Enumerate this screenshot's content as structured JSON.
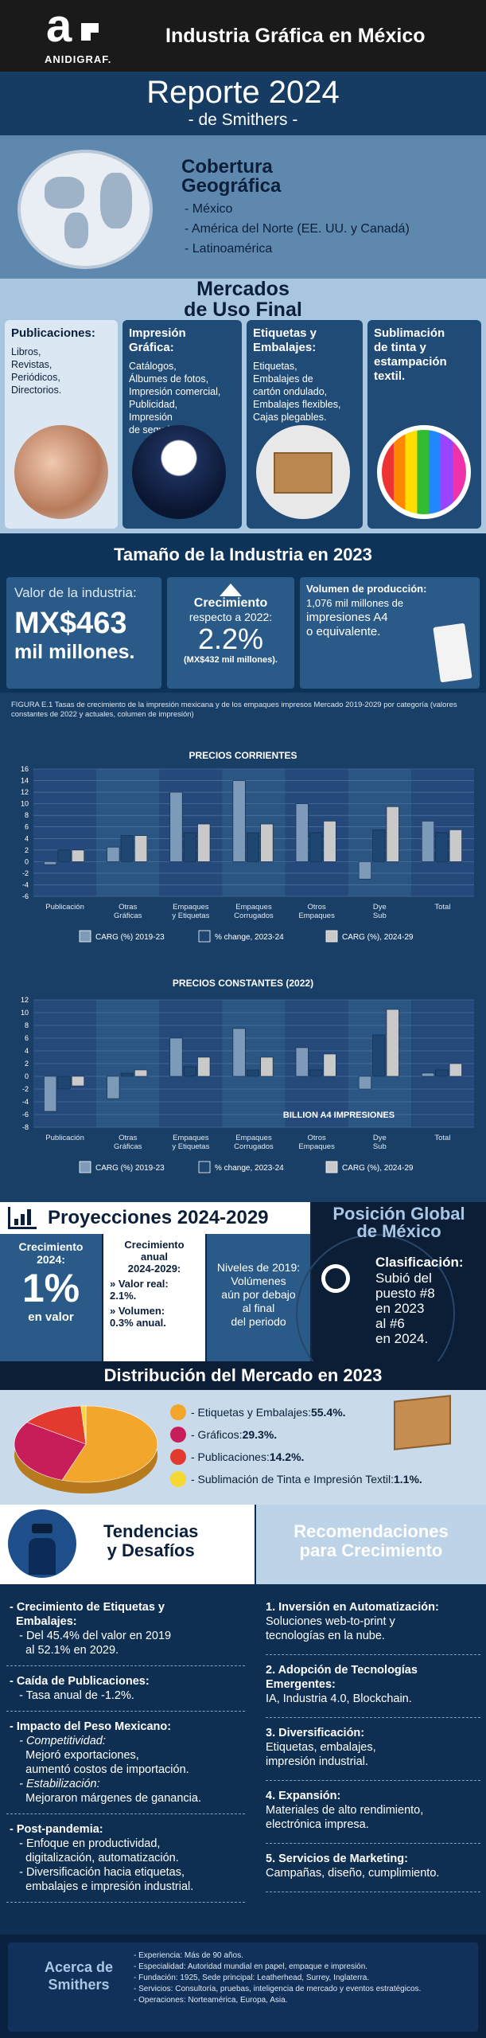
{
  "header": {
    "logo_text": "ANIDIGRAF.",
    "title": "Industria Gráfica en México"
  },
  "report": {
    "title": "Reporte 2024",
    "subtitle": "- de Smithers -"
  },
  "coverage": {
    "title1": "Cobertura",
    "title2": "Geográfica",
    "items": [
      "- México",
      "- América del Norte (EE. UU. y Canadá)",
      "- Latinoamérica"
    ]
  },
  "markets": {
    "title1": "Mercados",
    "title2": "de Uso Final",
    "cols": [
      {
        "h": "Publicaciones:",
        "b": "Libros,\nRevistas,\nPeriódicos,\nDirectorios."
      },
      {
        "h": "Impresión\nGráfica:",
        "b": "Catálogos,\nÁlbumes de fotos,\nImpresión comercial,\nPublicidad,\nImpresión\nde seguridad."
      },
      {
        "h": "Etiquetas y\nEmbalajes:",
        "b": "Etiquetas,\nEmbalajes de\ncartón ondulado,\nEmbalajes flexibles,\nCajas plegables."
      },
      {
        "h": "Sublimación\nde tinta y\nestampación\ntextil.",
        "b": ""
      }
    ]
  },
  "size": {
    "title": "Tamaño de la Industria en 2023",
    "value_label": "Valor de la industria:",
    "value": "MX$463",
    "value_unit": "mil millones.",
    "growth_label": "Crecimiento",
    "growth_sub": "respecto a 2022:",
    "growth": "2.2%",
    "growth_note": "(MX$432 mil millones).",
    "vol_label": "Volumen de producción:",
    "vol1": "1,076 mil millones de",
    "vol2": "impresiones A4",
    "vol3": "o equivalente."
  },
  "figure_note": "FIGURA E.1 Tasas de crecimiento de la impresión mexicana y de los empaques impresos Mercado 2019-2029 por categoría (valores constantes de 2022 y actuales, columen de impresión)",
  "chart_data": [
    {
      "type": "bar",
      "title": "PRECIOS CORRIENTES",
      "categories": [
        "Publicación",
        "Otras Gráficas",
        "Empaques y Etiquetas",
        "Empaques Corrugados",
        "Otros Empaques",
        "Dye Sub",
        "Total"
      ],
      "ylim": [
        -6,
        16
      ],
      "ticks": [
        16,
        14,
        12,
        10,
        8,
        6,
        4,
        2,
        0,
        -2,
        -4,
        -6
      ],
      "series": [
        {
          "name": "CARG (%) 2019-23",
          "values": [
            -0.5,
            2.5,
            12,
            14,
            10,
            -3,
            7
          ]
        },
        {
          "name": "% change, 2023-24",
          "values": [
            2,
            4.5,
            5,
            5,
            5,
            5.5,
            5
          ]
        },
        {
          "name": "CARG (%), 2024-29",
          "values": [
            2,
            4.5,
            6.5,
            6.5,
            7,
            9.5,
            5.5
          ]
        }
      ],
      "colors": [
        "#7d9ab8",
        "#1e4670",
        "#c9c9c9"
      ]
    },
    {
      "type": "bar",
      "title": "PRECIOS CONSTANTES (2022)",
      "categories": [
        "Publicación",
        "Otras Gráficas",
        "Empaques y Etiquetas",
        "Empaques Corrugados",
        "Otros Empaques",
        "Dye Sub",
        "Total"
      ],
      "ylim": [
        -8,
        12
      ],
      "ticks": [
        12,
        10,
        8,
        6,
        4,
        2,
        0,
        -2,
        -4,
        -6,
        -8
      ],
      "annotation": "BILLION A4 IMPRESIONES",
      "series": [
        {
          "name": "CARG (%) 2019-23",
          "values": [
            -5.5,
            -3.5,
            6,
            7.5,
            4.5,
            -2,
            0.5
          ]
        },
        {
          "name": "% change, 2023-24",
          "values": [
            -2,
            0.5,
            1.5,
            1,
            1,
            6.5,
            1
          ]
        },
        {
          "name": "CARG (%), 2024-29",
          "values": [
            -1.5,
            1,
            3,
            3,
            3.5,
            10.5,
            2
          ]
        }
      ],
      "colors": [
        "#7d9ab8",
        "#1e4670",
        "#c9c9c9"
      ]
    }
  ],
  "projections": {
    "title": "Proyecciones 2024-2029",
    "g_label": "Crecimiento\n2024:",
    "g_value": "1%",
    "g_unit": "en valor",
    "annual": "Crecimiento\nanual\n2024-2029:",
    "annual_v": "» Valor real:\n2.1%.",
    "annual_vol": "» Volumen:\n0.3% anual.",
    "levels": "Niveles de 2019:\nVolúmenes\naún por debajo\nal final\ndel periodo"
  },
  "global": {
    "title1": "Posición Global",
    "title2": "de México",
    "class_label": "Clasificación:",
    "class_text": "Subió del\npuesto #8\nen 2023\nal #6\nen 2024."
  },
  "distribution": {
    "title": "Distribución del Mercado en 2023",
    "items": [
      {
        "label": "- Etiquetas y Embalajes: ",
        "value": "55.4%.",
        "color": "#f2a62c",
        "share": 55.4
      },
      {
        "label": "- Gráficos: ",
        "value": "29.3%.",
        "color": "#c71d5a",
        "share": 29.3
      },
      {
        "label": "- Publicaciones: ",
        "value": "14.2%.",
        "color": "#e33a2f",
        "share": 14.2
      },
      {
        "label": "- Sublimación de Tinta e Impresión Textil: ",
        "value": "1.1%.",
        "color": "#f5d833",
        "share": 1.1
      }
    ]
  },
  "trends": {
    "title1": "Tendencias",
    "title2": "y Desafíos",
    "blocks": [
      {
        "h": "- Crecimiento de Etiquetas y\n  Embalajes:",
        "lines": [
          "- Del 45.4% del valor en 2019",
          "  al 52.1% en 2029."
        ]
      },
      {
        "h": "- Caída de Publicaciones:",
        "lines": [
          "- Tasa anual de -1.2%."
        ]
      },
      {
        "h": "- Impacto del Peso Mexicano:",
        "lines": [
          "- Competitividad:",
          "  Mejoró exportaciones,",
          "  aumentó costos de importación.",
          "- Estabilización:",
          "  Mejoraron márgenes de ganancia."
        ]
      },
      {
        "h": "- Post-pandemia:",
        "lines": [
          "- Enfoque en productividad,",
          "  digitalización, automatización.",
          "- Diversificación hacia etiquetas,",
          "  embalajes e impresión industrial."
        ]
      }
    ]
  },
  "recs": {
    "title1": "Recomendaciones",
    "title2": "para Crecimiento",
    "items": [
      {
        "h": "1. Inversión en Automatización:",
        "b": "Soluciones web-to-print y\ntecnologías en la nube."
      },
      {
        "h": "2. Adopción de Tecnologías\nEmergentes:",
        "b": "IA, Industria 4.0, Blockchain."
      },
      {
        "h": "3. Diversificación:",
        "b": "Etiquetas, embalajes,\nimpresión industrial."
      },
      {
        "h": "4. Expansión:",
        "b": "Materiales de alto rendimiento,\nelectrónica impresa."
      },
      {
        "h": "5. Servicios de Marketing:",
        "b": "Campañas, diseño, cumplimiento."
      }
    ]
  },
  "about": {
    "title1": "Acerca de",
    "title2": "Smithers",
    "items": [
      "- Experiencia: Más de 90 años.",
      "- Especialidad: Autoridad mundial en papel, empaque e impresión.",
      "- Fundación: 1925, Sede principal: Leatherhead, Surrey, Inglaterra.",
      "- Servicios: Consultoría, pruebas, inteligencia de mercado y eventos estratégicos.",
      "- Operaciones: Norteamérica, Europa, Asia."
    ]
  }
}
